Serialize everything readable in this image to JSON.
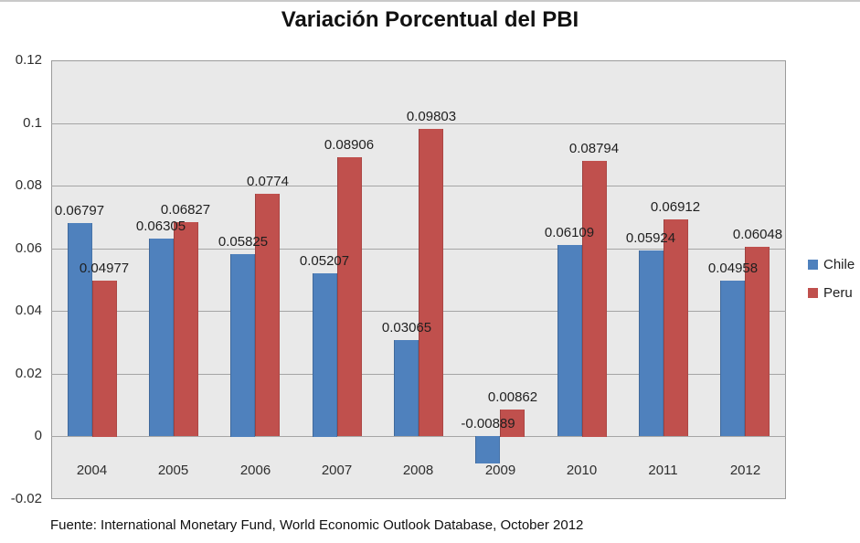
{
  "title": "Variación Porcentual del PBI",
  "source_note": "Fuente: International Monetary Fund, World Economic Outlook Database, October 2012",
  "colors": {
    "chile": "#4F81BD",
    "peru": "#C0504D",
    "plot_background": "#E9E9E9",
    "gridline": "#A5A5A5",
    "plot_border": "#9B9B9B"
  },
  "chart_data": {
    "type": "bar",
    "title": "Variación Porcentual del PBI",
    "categories": [
      "2004",
      "2005",
      "2006",
      "2007",
      "2008",
      "2009",
      "2010",
      "2011",
      "2012"
    ],
    "series": [
      {
        "name": "Chile",
        "color": "#4F81BD",
        "values": [
          0.06797,
          0.06305,
          0.05825,
          0.05207,
          0.03065,
          -0.00889,
          0.06109,
          0.05924,
          0.04958
        ],
        "labels": [
          "0.06797",
          "0.06305",
          "0.05825",
          "0.05207",
          "0.03065",
          "-0.00889",
          "0.06109",
          "0.05924",
          "0.04958"
        ]
      },
      {
        "name": "Peru",
        "color": "#C0504D",
        "values": [
          0.04977,
          0.06827,
          0.0774,
          0.08906,
          0.09803,
          0.00862,
          0.08794,
          0.06912,
          0.06048
        ],
        "labels": [
          "0.04977",
          "0.06827",
          "0.0774",
          "0.08906",
          "0.09803",
          "0.00862",
          "0.08794",
          "0.06912",
          "0.06048"
        ]
      }
    ],
    "xlabel": "",
    "ylabel": "",
    "ylim": [
      -0.02,
      0.12
    ],
    "ytick_step": 0.02,
    "yticks": [
      "0.12",
      "0.1",
      "0.08",
      "0.06",
      "0.04",
      "0.02",
      "0",
      "-0.02"
    ],
    "grid": true,
    "data_labels": true,
    "legend_position": "right"
  }
}
